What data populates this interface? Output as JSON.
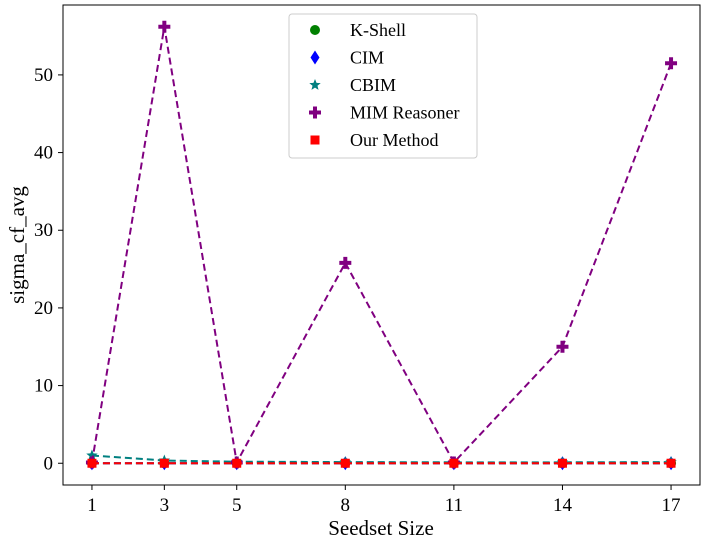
{
  "chart_data": {
    "type": "line",
    "xlabel": "Seedset Size",
    "ylabel": "sigma_cf_avg",
    "x": [
      1,
      3,
      5,
      8,
      11,
      14,
      17
    ],
    "xlim": [
      0.2,
      17.8
    ],
    "ylim": [
      -2.8,
      59
    ],
    "yticks": [
      0,
      10,
      20,
      30,
      40,
      50
    ],
    "grid": false,
    "legend_position": "top-center",
    "series": [
      {
        "name": "K-Shell",
        "color": "#008000",
        "marker": "circle",
        "values": [
          0,
          0,
          0,
          0,
          0,
          0,
          0
        ]
      },
      {
        "name": "CIM",
        "color": "#0000ff",
        "marker": "diamond",
        "values": [
          0,
          0,
          0,
          0,
          0,
          0,
          0
        ]
      },
      {
        "name": "CBIM",
        "color": "#008080",
        "marker": "star",
        "values": [
          1.0,
          0.35,
          0.2,
          0.15,
          0.12,
          0.12,
          0.15
        ]
      },
      {
        "name": "MIM Reasoner",
        "color": "#800080",
        "marker": "plus",
        "values": [
          0.1,
          56.2,
          0.1,
          25.8,
          0.1,
          15.0,
          51.5
        ]
      },
      {
        "name": "Our Method",
        "color": "#ff0000",
        "marker": "square",
        "values": [
          0,
          0,
          0,
          0,
          0,
          0,
          0
        ]
      }
    ]
  }
}
